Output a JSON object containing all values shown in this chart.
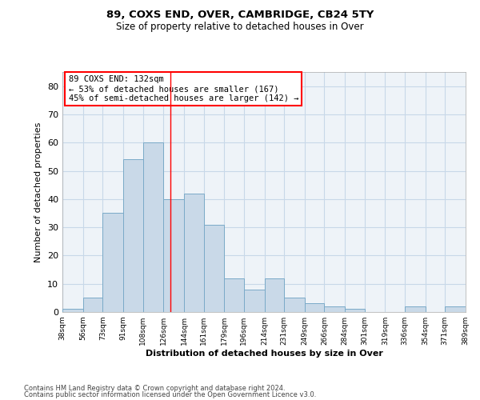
{
  "title": "89, COXS END, OVER, CAMBRIDGE, CB24 5TY",
  "subtitle": "Size of property relative to detached houses in Over",
  "xlabel": "Distribution of detached houses by size in Over",
  "ylabel": "Number of detached properties",
  "bar_values": [
    1,
    5,
    35,
    54,
    60,
    40,
    42,
    31,
    12,
    8,
    12,
    5,
    3,
    2,
    1,
    0,
    0,
    2,
    0,
    2
  ],
  "bin_edges": [
    38,
    56,
    73,
    91,
    108,
    126,
    144,
    161,
    179,
    196,
    214,
    231,
    249,
    266,
    284,
    301,
    319,
    336,
    354,
    371,
    389
  ],
  "tick_labels": [
    "38sqm",
    "56sqm",
    "73sqm",
    "91sqm",
    "108sqm",
    "126sqm",
    "144sqm",
    "161sqm",
    "179sqm",
    "196sqm",
    "214sqm",
    "231sqm",
    "249sqm",
    "266sqm",
    "284sqm",
    "301sqm",
    "319sqm",
    "336sqm",
    "354sqm",
    "371sqm",
    "389sqm"
  ],
  "bar_color": "#c9d9e8",
  "bar_edge_color": "#7aaac8",
  "grid_color": "#c8d8e8",
  "bg_color": "#eef3f8",
  "red_line_x": 132,
  "annotation_text": "89 COXS END: 132sqm\n← 53% of detached houses are smaller (167)\n45% of semi-detached houses are larger (142) →",
  "ylim": [
    0,
    85
  ],
  "yticks": [
    0,
    10,
    20,
    30,
    40,
    50,
    60,
    70,
    80
  ],
  "footer1": "Contains HM Land Registry data © Crown copyright and database right 2024.",
  "footer2": "Contains public sector information licensed under the Open Government Licence v3.0."
}
